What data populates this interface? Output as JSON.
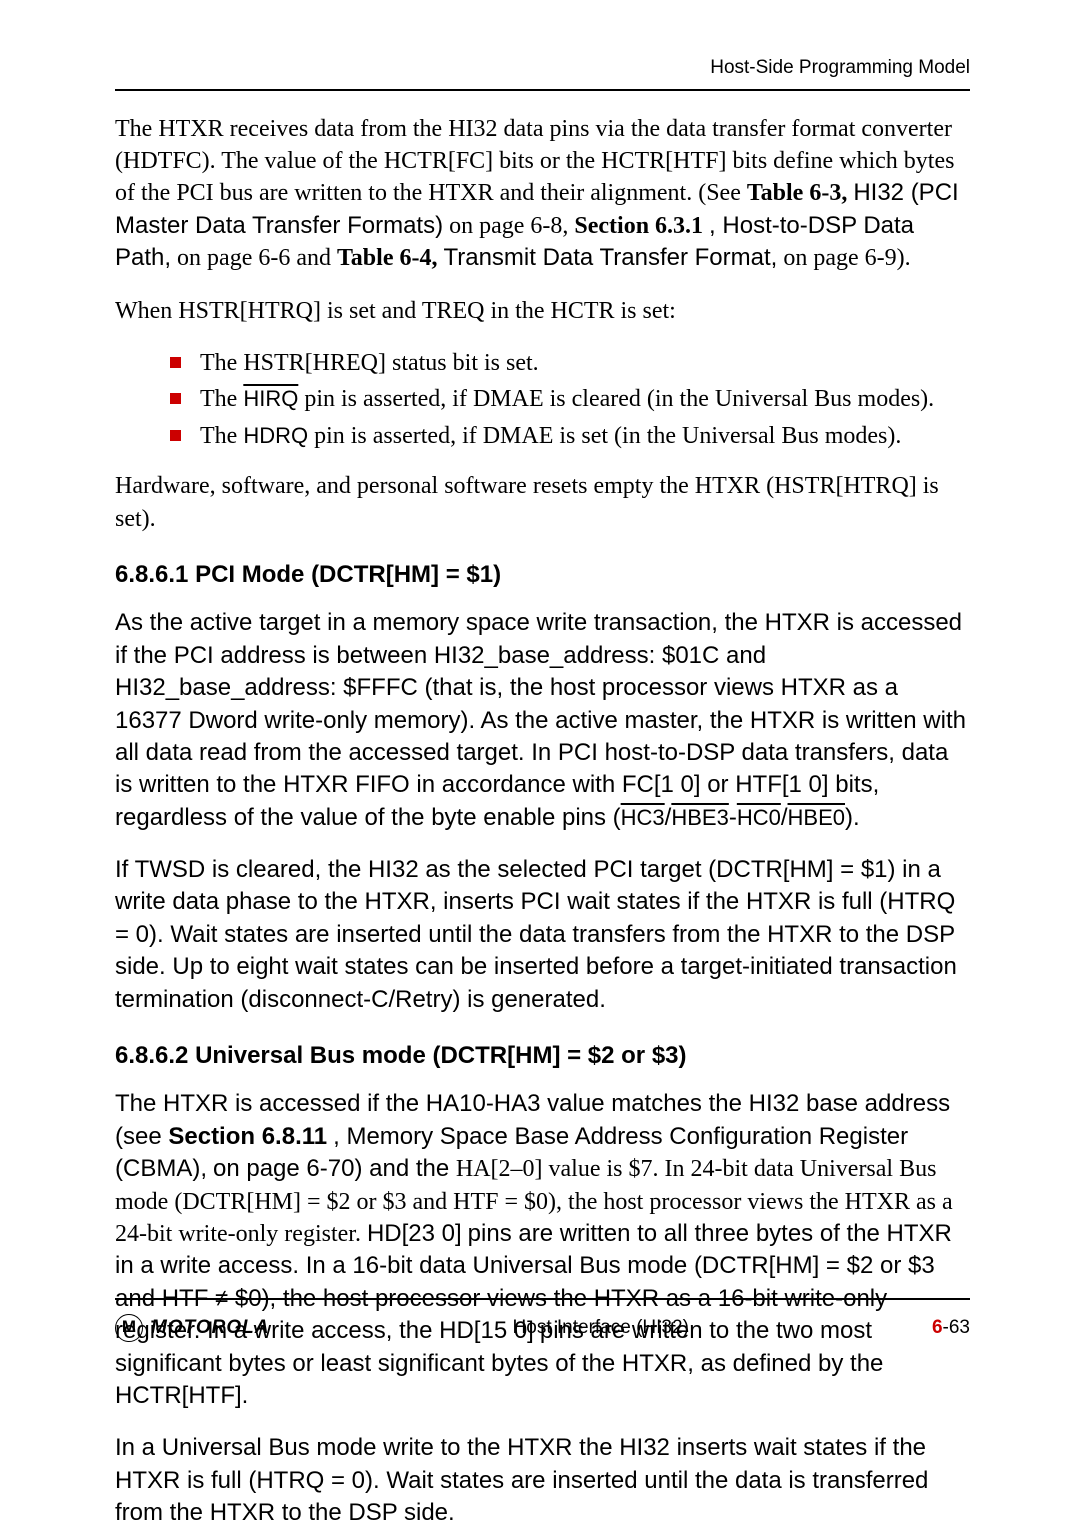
{
  "header": {
    "section": "Host-Side Programming Model"
  },
  "para1": {
    "t1": "The HTXR receives data from the HI32 data pins via the data transfer format converter (HDTFC). The value of the HCTR[FC] bits or the HCTR[HTF] bits define which bytes of the PCI bus are written to the HTXR and their alignment. (See ",
    "tbl63": "Table 6-3,",
    "tbl63_title": " HI32 (PCI Master Data Transfer Formats)",
    "on68": " on page 6-8, ",
    "sec631": "Section 6.3.1",
    "sec631_title": ",  Host-to-DSP Data Path,",
    "on66": " on page 6-6 and ",
    "tbl64": "Table 6-4,",
    "tbl64_title": " Transmit Data Transfer Format,",
    "on69": " on page 6-9)."
  },
  "para2": "When HSTR[HTRQ] is set and TREQ in the HCTR is set:",
  "bullets": {
    "b1": "The HSTR[HREQ] status bit is set.",
    "b2a": "The ",
    "b2pin": "HIRQ",
    "b2b": " pin is asserted, if DMAE is cleared (in the Universal Bus modes).",
    "b3a": "The ",
    "b3pin": "HDRQ",
    "b3b": " pin is asserted, if DMAE is set (in the Universal Bus modes)."
  },
  "para3": "Hardware, software, and personal software resets empty the HTXR (HSTR[HTRQ] is set).",
  "h1": "6.8.6.1 PCI Mode (DCTR[HM] = $1)",
  "para4": {
    "t1": "As the active target in a memory space write transaction, the HTXR is accessed if the PCI address is between HI32_base_address: $01C and HI32_base_address: $FFFC (that is, the host processor views HTXR as a 16377 Dword write-only memory). As the active master, the HTXR is written with all data read from the accessed target. In PCI host-to-DSP data transfers, data is written to the HTXR FIFO in accordance with FC[1 0] or HTF[1 0] bits, regardless of the value of the byte enable pins (",
    "pin1": "HC3",
    "slash1": "/",
    "pin2": "HBE3",
    "dash": "-",
    "pin3": "HC0",
    "slash2": "/",
    "pin4": "HBE0",
    "tail": ")."
  },
  "para5": "If TWSD is cleared, the HI32 as the selected PCI target (DCTR[HM] = $1) in a write data phase to the HTXR, inserts PCI wait states if the HTXR is full (HTRQ = 0). Wait states are inserted until the data transfers from the HTXR to the DSP side. Up to eight wait states can be inserted before a target-initiated transaction termination (disconnect-C/Retry) is generated.",
  "h2": "6.8.6.2 Universal Bus mode (DCTR[HM] = $2 or $3)",
  "para6": {
    "t1": "The HTXR is accessed if the HA10-HA3 value matches the HI32 base address (see ",
    "secref": "Section 6.8.11",
    "sectitle": ",  Memory Space Base Address Configuration Register (CBMA),",
    "onp": " on page 6-70) and the ",
    "ha": "HA[2–0]",
    "t2": " value is $7. In 24-bit data Universal Bus mode (DCTR[HM] = $2 or $3 and HTF = $0), the host processor views the HTXR as a 24-bit write-only register. ",
    "hd23": "HD[23  0]",
    "t3": " pins are written to all three bytes of the HTXR in a write access. In a 16-bit data Universal Bus mode (DCTR[HM] = $2 or $3 and HTF ≠ $0), the host processor views the HTXR as a 16-bit write-only register. In a write access, the ",
    "hd15": "HD[15  0]",
    "t4": " pins are written to the two most significant bytes or least significant bytes of the HTXR, as defined by the HCTR[HTF]."
  },
  "para7": "In a Universal Bus mode write to the HTXR the HI32 inserts wait states if the HTXR is full (HTRQ = 0). Wait states are inserted until the data is transferred from the HTXR to the DSP side.",
  "footer": {
    "center": "Host Interface (HI32)",
    "chapter": "6",
    "page": "-63",
    "brand": "MOTOROLA",
    "logoletter": "M"
  }
}
